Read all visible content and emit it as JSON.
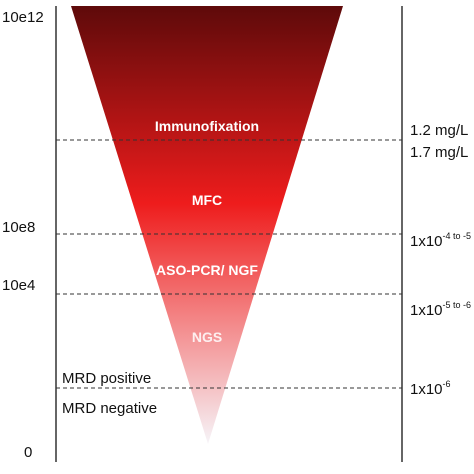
{
  "colors": {
    "cone_top": "#5e0a0a",
    "cone_mid": "#ee1c1c",
    "cone_bottom": "#f6f4f8",
    "axis": "#000000",
    "dashed": "#333333",
    "tech_text": "#ffffff"
  },
  "left_axis": {
    "ticks": [
      "10e12",
      "10e8",
      "10e4",
      "0"
    ]
  },
  "techniques": [
    "Immunofixation",
    "MFC",
    "ASO-PCR/ NGF",
    "NGS"
  ],
  "mrd": {
    "positive": "MRD positive",
    "negative": "MRD negative"
  },
  "right_axis": {
    "labels": [
      {
        "base": "1.2 mg/L",
        "exp": "",
        "tail": ""
      },
      {
        "base": "1.7 mg/L",
        "exp": "",
        "tail": ""
      },
      {
        "base": "1x10",
        "exp": "-4 to -5",
        "tail": ""
      },
      {
        "base": "1x10",
        "exp": "-5 to -6",
        "tail": ""
      },
      {
        "base": "1x10",
        "exp": "-6",
        "tail": ""
      }
    ]
  }
}
